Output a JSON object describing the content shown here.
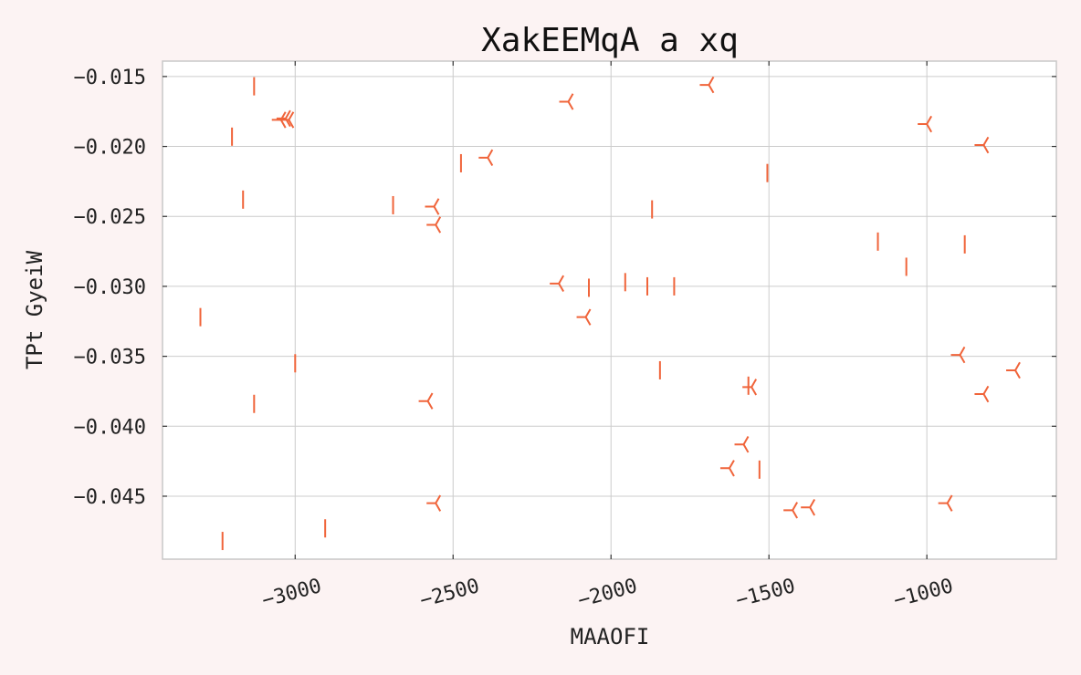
{
  "chart_data": {
    "type": "scatter",
    "title": "XakEEMqA a xq",
    "xlabel": "MAAOFI",
    "ylabel": "TPt GyeiW",
    "xlim": [
      -3420,
      -590
    ],
    "ylim": [
      -0.0495,
      -0.0139
    ],
    "xticks": [
      -3000,
      -2500,
      -2000,
      -1500,
      -1000
    ],
    "xtick_labels": [
      "−3000",
      "−2500",
      "−2000",
      "−1500",
      "−1000"
    ],
    "yticks": [
      -0.015,
      -0.02,
      -0.025,
      -0.03,
      -0.035,
      -0.04,
      -0.045
    ],
    "ytick_labels": [
      "−0.015",
      "−0.020",
      "−0.025",
      "−0.030",
      "−0.035",
      "−0.040",
      "−0.045"
    ],
    "grid": true,
    "marker_color": "#f0643a",
    "series": [
      {
        "marker": "vline",
        "points": [
          [
            -3130,
            -0.0157
          ],
          [
            -3200,
            -0.0193
          ],
          [
            -3165,
            -0.0238
          ],
          [
            -3300,
            -0.0322
          ],
          [
            -3130,
            -0.0384
          ],
          [
            -3000,
            -0.0355
          ],
          [
            -3230,
            -0.0482
          ],
          [
            -2905,
            -0.0473
          ],
          [
            -2690,
            -0.0242
          ],
          [
            -2475,
            -0.0212
          ],
          [
            -1870,
            -0.0245
          ],
          [
            -1505,
            -0.0219
          ],
          [
            -1155,
            -0.0268
          ],
          [
            -1065,
            -0.0286
          ],
          [
            -880,
            -0.027
          ],
          [
            -2070,
            -0.0301
          ],
          [
            -1955,
            -0.0297
          ],
          [
            -1885,
            -0.03
          ],
          [
            -1800,
            -0.03
          ],
          [
            -1845,
            -0.036
          ],
          [
            -1565,
            -0.0371
          ],
          [
            -1530,
            -0.0431
          ]
        ]
      },
      {
        "marker": "tri_down",
        "points": [
          [
            -3045,
            -0.0181
          ],
          [
            -3030,
            -0.018
          ],
          [
            -3020,
            -0.0181
          ],
          [
            -2560,
            -0.0243
          ],
          [
            -2555,
            -0.0256
          ],
          [
            -2390,
            -0.0208
          ],
          [
            -2135,
            -0.0168
          ],
          [
            -1690,
            -0.0156
          ],
          [
            -2165,
            -0.0298
          ],
          [
            -2080,
            -0.0322
          ],
          [
            -2580,
            -0.0382
          ],
          [
            -2555,
            -0.0455
          ],
          [
            -1000,
            -0.0184
          ],
          [
            -820,
            -0.0199
          ],
          [
            -1555,
            -0.0372
          ],
          [
            -1580,
            -0.0413
          ],
          [
            -1625,
            -0.043
          ],
          [
            -1425,
            -0.046
          ],
          [
            -1370,
            -0.0458
          ],
          [
            -895,
            -0.0349
          ],
          [
            -820,
            -0.0377
          ],
          [
            -720,
            -0.036
          ],
          [
            -935,
            -0.0455
          ]
        ]
      }
    ]
  }
}
